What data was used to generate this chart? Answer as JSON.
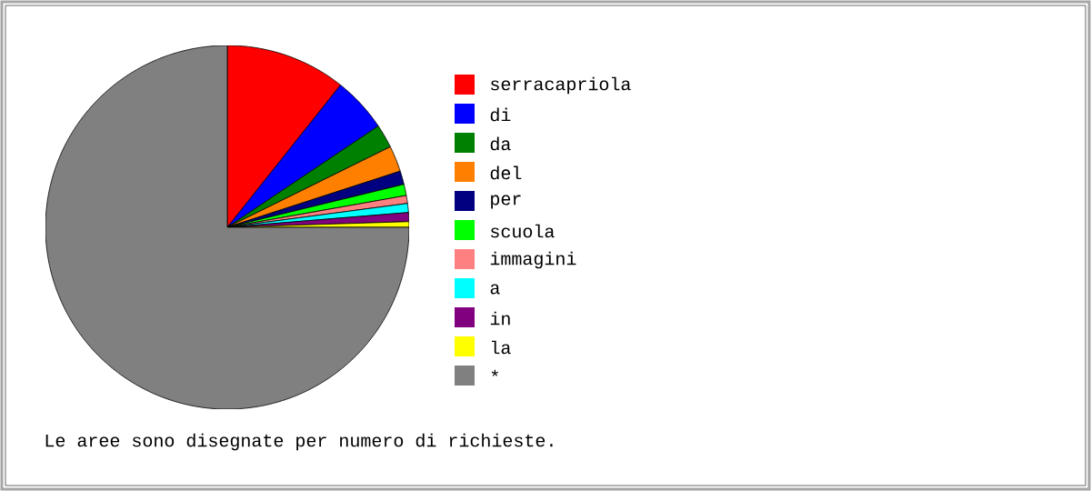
{
  "chart_data": {
    "type": "pie",
    "categories": [
      "serracapriola",
      "di",
      "da",
      "del",
      "per",
      "scuola",
      "immagini",
      "a",
      "in",
      "la",
      "*"
    ],
    "values": [
      10.7,
      4.9,
      2.1,
      2.3,
      1.2,
      1.0,
      0.7,
      0.8,
      0.8,
      0.5,
      75.0
    ],
    "colors": [
      "#ff0000",
      "#0000ff",
      "#008000",
      "#ff8000",
      "#000080",
      "#00ff00",
      "#ff8080",
      "#00ffff",
      "#800080",
      "#ffff00",
      "#808080"
    ],
    "legend": "right",
    "annotations": [
      "Le aree sono disegnate per numero di richieste."
    ]
  }
}
